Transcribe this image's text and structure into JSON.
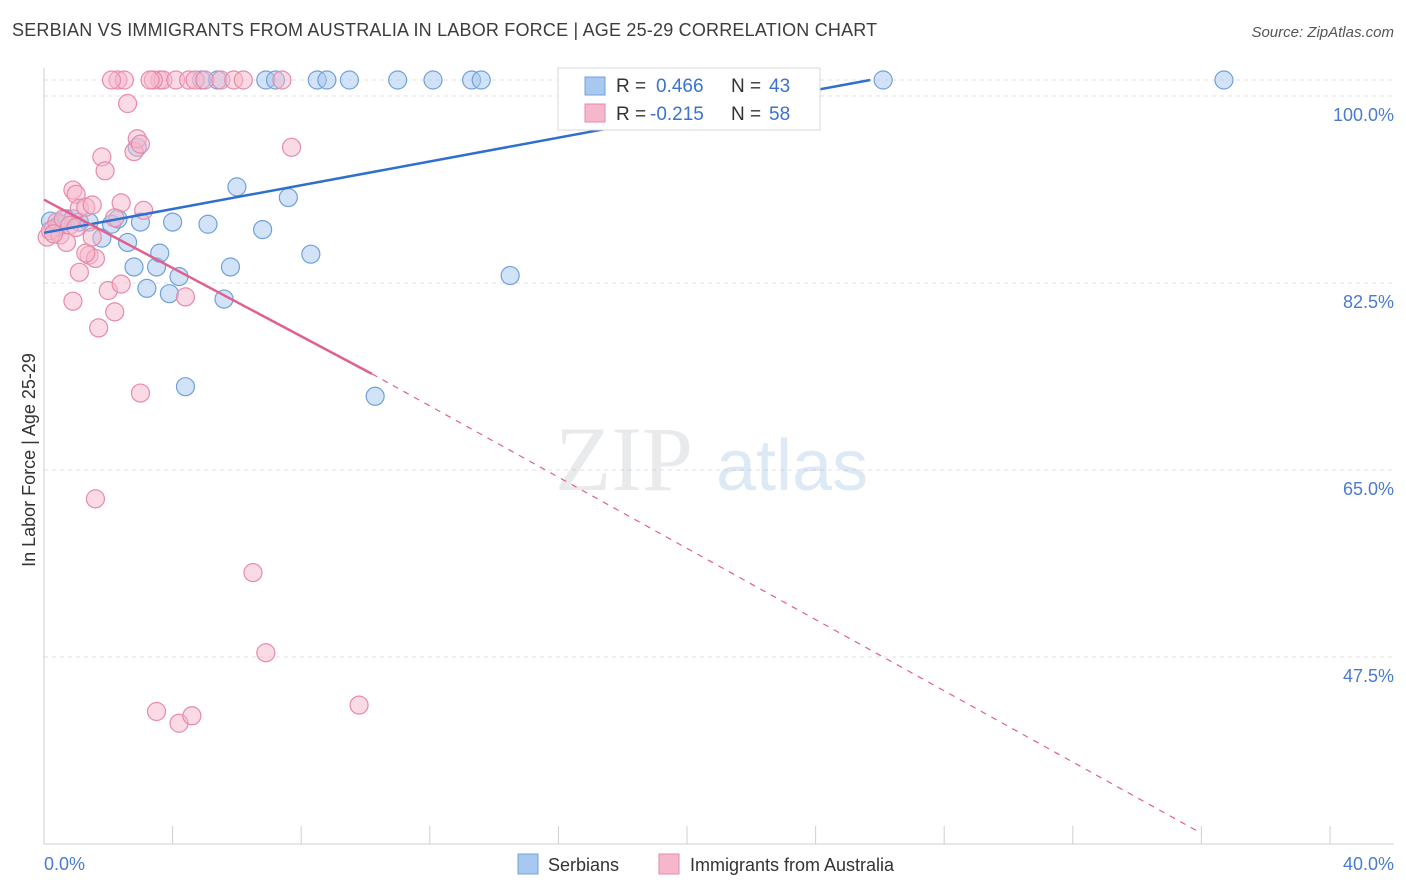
{
  "header": {
    "title": "SERBIAN VS IMMIGRANTS FROM AUSTRALIA IN LABOR FORCE | AGE 25-29 CORRELATION CHART",
    "source": "Source: ZipAtlas.com"
  },
  "watermark": {
    "zip": "ZIP",
    "atlas": "atlas"
  },
  "chart_data": {
    "type": "scatter",
    "title": "SERBIAN VS IMMIGRANTS FROM AUSTRALIA IN LABOR FORCE | AGE 25-29 CORRELATION CHART",
    "xlabel": "",
    "ylabel": "In Labor Force | Age 25-29",
    "xlim": [
      0.0,
      40.0
    ],
    "ylim": [
      30.0,
      101.5
    ],
    "x_tick_labels": [
      {
        "value": 0.0,
        "label": "0.0%"
      },
      {
        "value": 40.0,
        "label": "40.0%"
      }
    ],
    "y_tick_labels": [
      {
        "value": 100.0,
        "label": "100.0%"
      },
      {
        "value": 82.5,
        "label": "82.5%"
      },
      {
        "value": 65.0,
        "label": "65.0%"
      },
      {
        "value": 47.5,
        "label": "47.5%"
      }
    ],
    "grid": true,
    "legend_position": "bottom-center",
    "stats": [
      {
        "series": "Serbians",
        "r_label": "R =",
        "r": "0.466",
        "n_label": "N =",
        "n": "43"
      },
      {
        "series": "Immigrants from Australia",
        "r_label": "R =",
        "r": "-0.215",
        "n_label": "N =",
        "n": "58"
      }
    ],
    "colors": {
      "serbians_fill": "#a8c8f0",
      "serbians_stroke": "#6fa0dc",
      "serbians_line": "#2f6fce",
      "australia_fill": "#f5b8cb",
      "australia_stroke": "#e88aa8",
      "australia_line": "#e0608e",
      "tick_text": "#4a7bd0",
      "grid": "#e2e2e2"
    },
    "series": [
      {
        "name": "Serbians",
        "trend": {
          "x": [
            0.0,
            25.7
          ],
          "y": [
            87.2,
            101.5
          ]
        },
        "points": [
          [
            0.2,
            88.3
          ],
          [
            0.3,
            87.6
          ],
          [
            0.5,
            88.0
          ],
          [
            0.7,
            88.5
          ],
          [
            0.9,
            88.5
          ],
          [
            1.1,
            88.2
          ],
          [
            1.4,
            88.2
          ],
          [
            1.8,
            86.7
          ],
          [
            2.1,
            88.0
          ],
          [
            2.3,
            88.5
          ],
          [
            2.6,
            86.3
          ],
          [
            2.8,
            84.0
          ],
          [
            2.9,
            95.2
          ],
          [
            3.2,
            82.0
          ],
          [
            3.5,
            84.0
          ],
          [
            3.6,
            85.3
          ],
          [
            3.9,
            81.5
          ],
          [
            4.0,
            88.2
          ],
          [
            4.2,
            83.1
          ],
          [
            4.4,
            72.8
          ],
          [
            5.1,
            88.0
          ],
          [
            5.6,
            81.0
          ],
          [
            5.8,
            84.0
          ],
          [
            6.0,
            91.5
          ],
          [
            6.8,
            87.5
          ],
          [
            6.9,
            101.5
          ],
          [
            7.2,
            101.5
          ],
          [
            7.6,
            90.5
          ],
          [
            8.3,
            85.2
          ],
          [
            8.5,
            101.5
          ],
          [
            8.8,
            101.5
          ],
          [
            9.5,
            101.5
          ],
          [
            11.0,
            101.5
          ],
          [
            12.1,
            101.5
          ],
          [
            13.3,
            101.5
          ],
          [
            13.6,
            101.5
          ],
          [
            14.5,
            83.2
          ],
          [
            10.3,
            71.9
          ],
          [
            4.9,
            101.5
          ],
          [
            26.1,
            101.5
          ],
          [
            36.7,
            101.5
          ],
          [
            3.0,
            88.2
          ],
          [
            5.4,
            101.5
          ]
        ]
      },
      {
        "name": "Immigrants from Australia",
        "trend": {
          "x": [
            0.0,
            10.2
          ],
          "y": [
            90.3,
            74.0
          ]
        },
        "trend_dashed": {
          "x": [
            10.2,
            36.0
          ],
          "y": [
            74.0,
            31.0
          ]
        },
        "points": [
          [
            0.1,
            86.8
          ],
          [
            0.2,
            87.4
          ],
          [
            0.4,
            88.2
          ],
          [
            0.5,
            87.0
          ],
          [
            0.6,
            88.5
          ],
          [
            0.8,
            87.9
          ],
          [
            0.7,
            86.3
          ],
          [
            0.9,
            91.2
          ],
          [
            1.0,
            90.8
          ],
          [
            1.1,
            89.5
          ],
          [
            1.3,
            89.6
          ],
          [
            1.5,
            89.8
          ],
          [
            1.4,
            85.1
          ],
          [
            1.6,
            84.8
          ],
          [
            1.7,
            78.3
          ],
          [
            1.8,
            94.3
          ],
          [
            1.9,
            93.0
          ],
          [
            2.0,
            81.8
          ],
          [
            2.2,
            79.8
          ],
          [
            2.4,
            90.0
          ],
          [
            2.6,
            99.3
          ],
          [
            2.8,
            94.8
          ],
          [
            2.9,
            96.0
          ],
          [
            3.0,
            95.5
          ],
          [
            3.0,
            72.2
          ],
          [
            3.1,
            89.3
          ],
          [
            3.6,
            101.5
          ],
          [
            3.7,
            101.5
          ],
          [
            4.1,
            101.5
          ],
          [
            4.5,
            101.5
          ],
          [
            4.7,
            101.5
          ],
          [
            5.0,
            101.5
          ],
          [
            5.5,
            101.5
          ],
          [
            5.9,
            101.5
          ],
          [
            6.2,
            101.5
          ],
          [
            7.4,
            101.5
          ],
          [
            7.7,
            95.2
          ],
          [
            2.3,
            101.5
          ],
          [
            2.5,
            101.5
          ],
          [
            3.4,
            101.5
          ],
          [
            1.6,
            62.3
          ],
          [
            3.5,
            42.4
          ],
          [
            4.2,
            41.3
          ],
          [
            4.6,
            42.0
          ],
          [
            6.5,
            55.4
          ],
          [
            6.9,
            47.9
          ],
          [
            9.8,
            43.0
          ],
          [
            1.1,
            83.5
          ],
          [
            0.9,
            80.8
          ],
          [
            2.4,
            82.4
          ],
          [
            1.3,
            85.3
          ],
          [
            4.4,
            81.2
          ],
          [
            2.2,
            88.6
          ],
          [
            1.5,
            86.8
          ],
          [
            1.0,
            87.7
          ],
          [
            0.3,
            87.1
          ],
          [
            2.1,
            101.5
          ],
          [
            3.3,
            101.5
          ]
        ]
      }
    ]
  },
  "legend": {
    "items": [
      {
        "label": "Serbians"
      },
      {
        "label": "Immigrants from Australia"
      }
    ]
  }
}
